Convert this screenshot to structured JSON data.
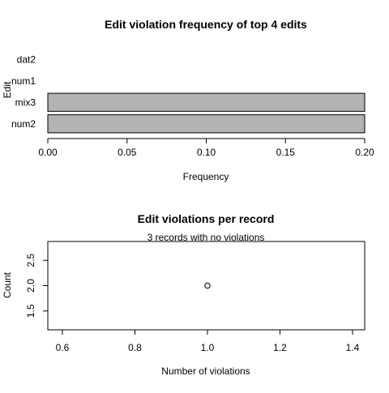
{
  "chart_data": [
    {
      "type": "bar",
      "orientation": "horizontal",
      "title": "Edit violation frequency of top 4 edits",
      "xlabel": "Frequency",
      "ylabel": "Edit",
      "categories": [
        "num2",
        "mix3",
        "num1",
        "dat2"
      ],
      "values": [
        0.2,
        0.2,
        0.0,
        0.0
      ],
      "xlim": [
        0,
        0.2
      ],
      "xticks": [
        "0.00",
        "0.05",
        "0.10",
        "0.15",
        "0.20"
      ],
      "bar_color": "#b3b3b3",
      "grid": false
    },
    {
      "type": "scatter",
      "title": "Edit violations per record",
      "subtitle": "3 records with no violations",
      "xlabel": "Number of violations",
      "ylabel": "Count",
      "x": [
        1.0
      ],
      "y": [
        2.0
      ],
      "xlim": [
        0.6,
        1.4
      ],
      "ylim": [
        1.0,
        3.0
      ],
      "xticks": [
        "0.6",
        "0.8",
        "1.0",
        "1.2",
        "1.4"
      ],
      "yticks": [
        "1.5",
        "2.0",
        "2.5"
      ],
      "marker": "open-circle",
      "grid": false
    }
  ]
}
